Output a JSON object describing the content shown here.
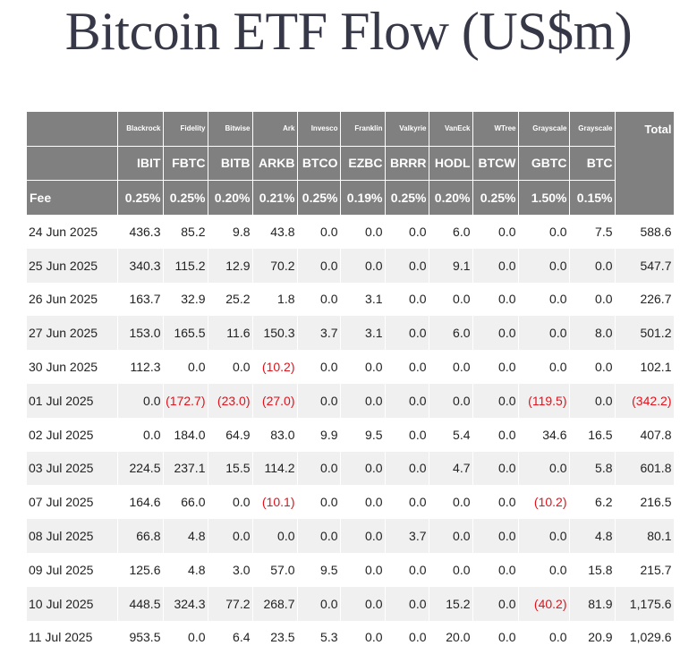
{
  "title": "Bitcoin ETF Flow (US$m)",
  "header": {
    "issuers": [
      "Blackrock",
      "Fidelity",
      "Bitwise",
      "Ark",
      "Invesco",
      "Franklin",
      "Valkyrie",
      "VanEck",
      "WTree",
      "Grayscale",
      "Grayscale"
    ],
    "total_label": "Total",
    "tickers": [
      "IBIT",
      "FBTC",
      "BITB",
      "ARKB",
      "BTCO",
      "EZBC",
      "BRRR",
      "HODL",
      "BTCW",
      "GBTC",
      "BTC"
    ],
    "fee_label": "Fee",
    "fees": [
      "0.25%",
      "0.25%",
      "0.20%",
      "0.21%",
      "0.25%",
      "0.19%",
      "0.25%",
      "0.20%",
      "0.25%",
      "1.50%",
      "0.15%"
    ]
  },
  "rows": [
    {
      "date": "24 Jun 2025",
      "values": [
        "436.3",
        "85.2",
        "9.8",
        "43.8",
        "0.0",
        "0.0",
        "0.0",
        "6.0",
        "0.0",
        "0.0",
        "7.5"
      ],
      "total": "588.6"
    },
    {
      "date": "25 Jun 2025",
      "values": [
        "340.3",
        "115.2",
        "12.9",
        "70.2",
        "0.0",
        "0.0",
        "0.0",
        "9.1",
        "0.0",
        "0.0",
        "0.0"
      ],
      "total": "547.7"
    },
    {
      "date": "26 Jun 2025",
      "values": [
        "163.7",
        "32.9",
        "25.2",
        "1.8",
        "0.0",
        "3.1",
        "0.0",
        "0.0",
        "0.0",
        "0.0",
        "0.0"
      ],
      "total": "226.7"
    },
    {
      "date": "27 Jun 2025",
      "values": [
        "153.0",
        "165.5",
        "11.6",
        "150.3",
        "3.7",
        "3.1",
        "0.0",
        "6.0",
        "0.0",
        "0.0",
        "8.0"
      ],
      "total": "501.2"
    },
    {
      "date": "30 Jun 2025",
      "values": [
        "112.3",
        "0.0",
        "0.0",
        "(10.2)",
        "0.0",
        "0.0",
        "0.0",
        "0.0",
        "0.0",
        "0.0",
        "0.0"
      ],
      "total": "102.1"
    },
    {
      "date": "01 Jul 2025",
      "values": [
        "0.0",
        "(172.7)",
        "(23.0)",
        "(27.0)",
        "0.0",
        "0.0",
        "0.0",
        "0.0",
        "0.0",
        "(119.5)",
        "0.0"
      ],
      "total": "(342.2)"
    },
    {
      "date": "02 Jul 2025",
      "values": [
        "0.0",
        "184.0",
        "64.9",
        "83.0",
        "9.9",
        "9.5",
        "0.0",
        "5.4",
        "0.0",
        "34.6",
        "16.5"
      ],
      "total": "407.8"
    },
    {
      "date": "03 Jul 2025",
      "values": [
        "224.5",
        "237.1",
        "15.5",
        "114.2",
        "0.0",
        "0.0",
        "0.0",
        "4.7",
        "0.0",
        "0.0",
        "5.8"
      ],
      "total": "601.8"
    },
    {
      "date": "07 Jul 2025",
      "values": [
        "164.6",
        "66.0",
        "0.0",
        "(10.1)",
        "0.0",
        "0.0",
        "0.0",
        "0.0",
        "0.0",
        "(10.2)",
        "6.2"
      ],
      "total": "216.5"
    },
    {
      "date": "08 Jul 2025",
      "values": [
        "66.8",
        "4.8",
        "0.0",
        "0.0",
        "0.0",
        "0.0",
        "3.7",
        "0.0",
        "0.0",
        "0.0",
        "4.8"
      ],
      "total": "80.1"
    },
    {
      "date": "09 Jul 2025",
      "values": [
        "125.6",
        "4.8",
        "3.0",
        "57.0",
        "9.5",
        "0.0",
        "0.0",
        "0.0",
        "0.0",
        "0.0",
        "15.8"
      ],
      "total": "215.7"
    },
    {
      "date": "10 Jul 2025",
      "values": [
        "448.5",
        "324.3",
        "77.2",
        "268.7",
        "0.0",
        "0.0",
        "0.0",
        "15.2",
        "0.0",
        "(40.2)",
        "81.9"
      ],
      "total": "1,175.6"
    },
    {
      "date": "11 Jul 2025",
      "values": [
        "953.5",
        "0.0",
        "6.4",
        "23.5",
        "5.3",
        "0.0",
        "0.0",
        "20.0",
        "0.0",
        "0.0",
        "20.9"
      ],
      "total": "1,029.6"
    }
  ],
  "colors": {
    "header_bg": "#808080",
    "header_text": "#ffffff",
    "negative": "#e0121b",
    "stripe": "#f0f0f0",
    "title": "#363847"
  }
}
